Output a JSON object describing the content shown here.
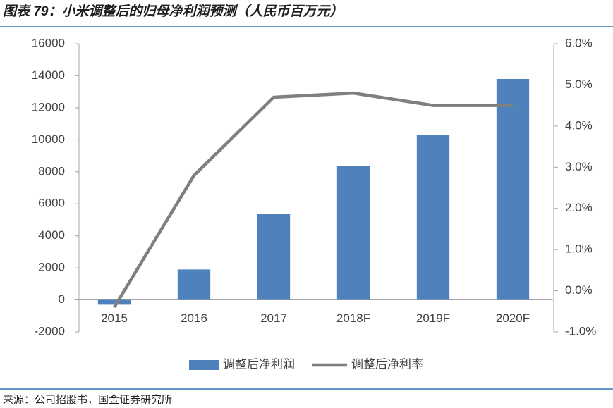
{
  "chart_data": {
    "type": "combo",
    "title": "图表 79：小米调整后的归母净利润预测（人民币百万元）",
    "source": "来源：公司招股书，国金证券研究所",
    "categories": [
      "2015",
      "2016",
      "2017",
      "2018F",
      "2019F",
      "2020F"
    ],
    "series": [
      {
        "name": "调整后净利润",
        "type": "bar",
        "color": "#4f81bd",
        "values": [
          -300,
          1900,
          5350,
          8350,
          10300,
          13800
        ]
      },
      {
        "name": "调整后净利率",
        "type": "line",
        "axis": "y2",
        "color": "#7f7f7f",
        "values": [
          -0.4,
          2.8,
          4.7,
          4.8,
          4.5,
          4.5
        ]
      }
    ],
    "ylim": [
      -2000,
      16000
    ],
    "yticks": [
      -2000,
      0,
      2000,
      4000,
      6000,
      8000,
      10000,
      12000,
      14000,
      16000
    ],
    "y2lim": [
      -1,
      6
    ],
    "y2ticks": [
      {
        "value": -1,
        "label": "-1.0%"
      },
      {
        "value": 0,
        "label": "0.0%"
      },
      {
        "value": 1,
        "label": "1.0%"
      },
      {
        "value": 2,
        "label": "2.0%"
      },
      {
        "value": 3,
        "label": "3.0%"
      },
      {
        "value": 4,
        "label": "4.0%"
      },
      {
        "value": 5,
        "label": "5.0%"
      },
      {
        "value": 6,
        "label": "6.0%"
      }
    ],
    "grid": false
  }
}
